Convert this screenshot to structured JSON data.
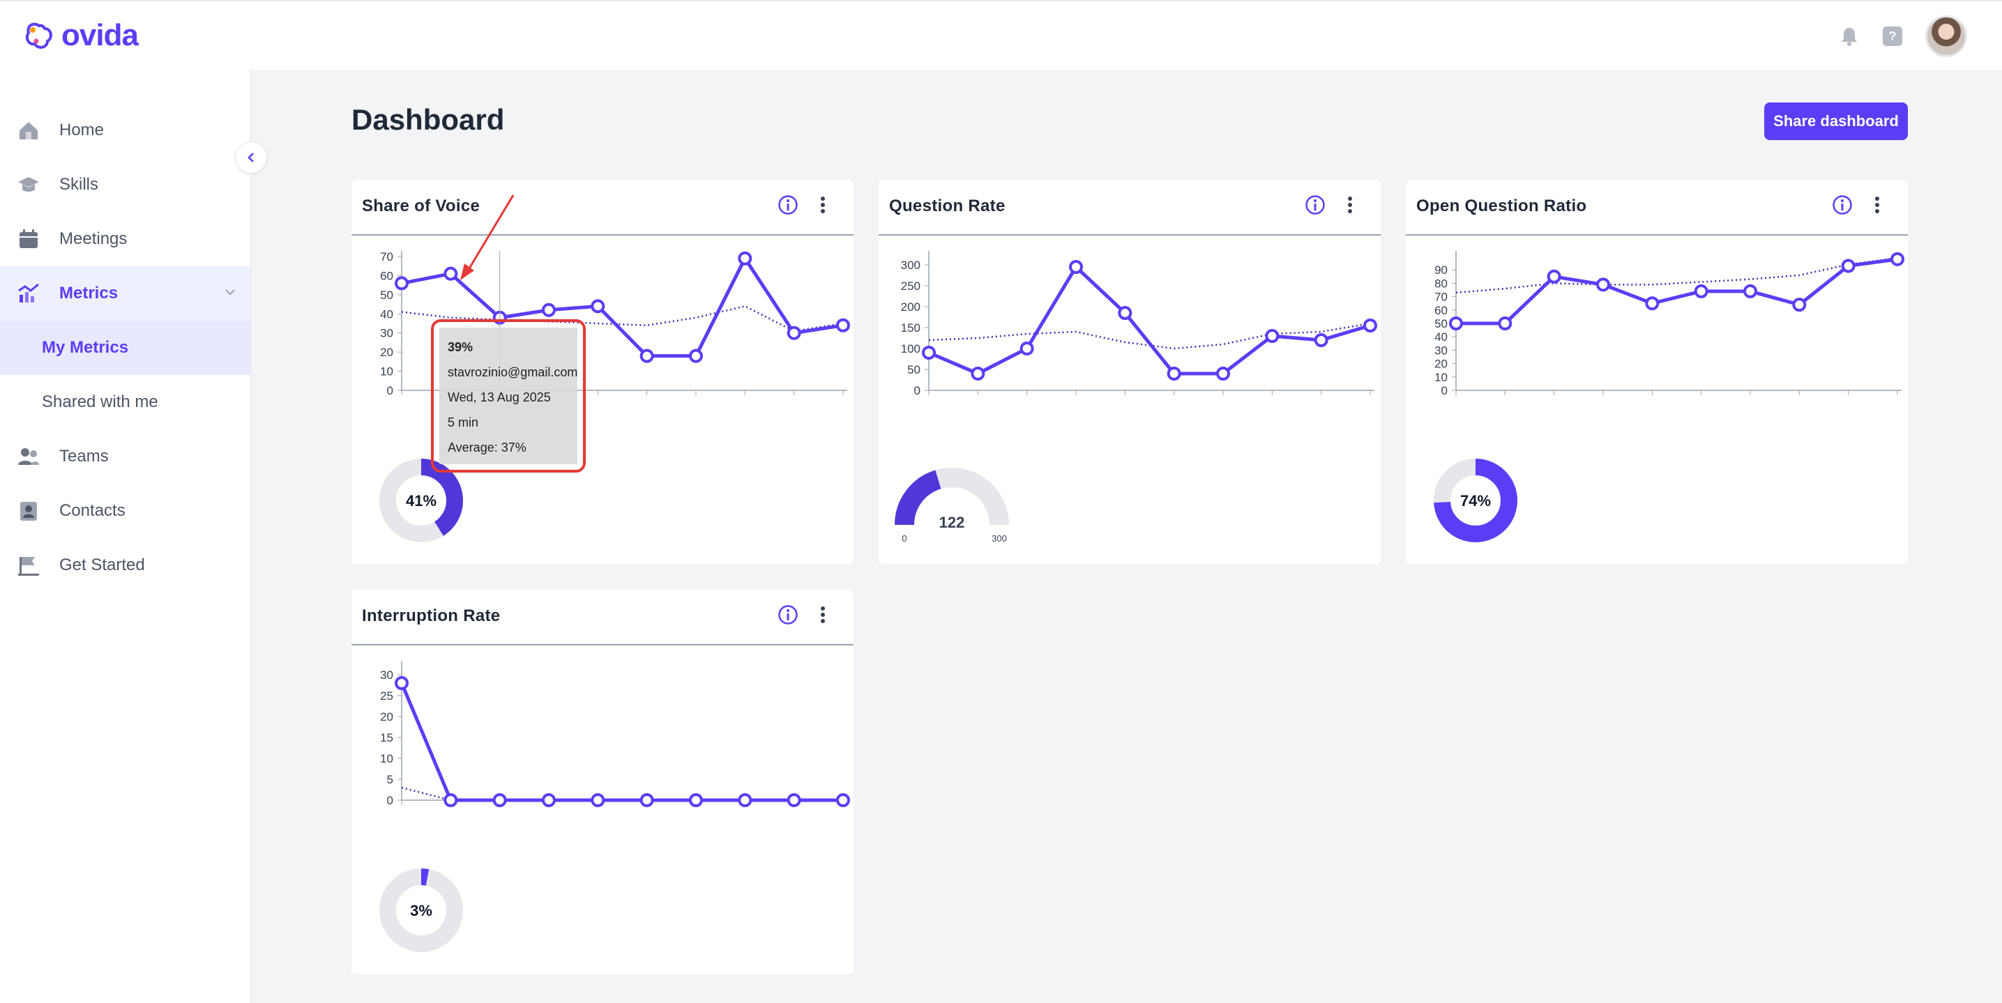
{
  "app": {
    "name": "ovida"
  },
  "header": {
    "help_glyph": "?"
  },
  "sidebar": {
    "items": [
      {
        "label": "Home",
        "icon": "home-icon"
      },
      {
        "label": "Skills",
        "icon": "graduation-cap-icon"
      },
      {
        "label": "Meetings",
        "icon": "calendar-icon"
      },
      {
        "label": "Metrics",
        "icon": "chart-line-icon",
        "active": true
      },
      {
        "label": "Teams",
        "icon": "users-icon"
      },
      {
        "label": "Contacts",
        "icon": "contact-card-icon"
      },
      {
        "label": "Get Started",
        "icon": "flag-icon"
      }
    ],
    "metrics_sub": [
      {
        "label": "My Metrics",
        "selected": true
      },
      {
        "label": "Shared with me"
      }
    ]
  },
  "page": {
    "title": "Dashboard",
    "share_button": "Share dashboard"
  },
  "colors": {
    "accent": "#5b3df5",
    "highlight": "#e53935",
    "gauge_track": "#e5e7eb"
  },
  "cards": [
    {
      "title": "Share of Voice",
      "gauge_label": "41%",
      "chart_data": {
        "type": "line",
        "x": [
          1,
          2,
          3,
          4,
          5,
          6,
          7,
          8,
          9,
          10
        ],
        "yticks": [
          "0",
          "10",
          "20",
          "30",
          "40",
          "50",
          "60",
          "70"
        ],
        "ylim": [
          0,
          70
        ],
        "series": [
          {
            "values": [
              56,
              61,
              38,
              42,
              44,
              18,
              18,
              69,
              30,
              34
            ]
          },
          {
            "values": [
              41,
              38,
              37,
              36,
              35,
              34,
              38,
              44,
              31,
              35
            ],
            "style": "dotted"
          }
        ]
      },
      "gauge": {
        "type": "donut",
        "value": 41,
        "max": 100
      }
    },
    {
      "title": "Question Rate",
      "gauge_label": "122",
      "chart_data": {
        "type": "line",
        "x": [
          1,
          2,
          3,
          4,
          5,
          6,
          7,
          8,
          9,
          10
        ],
        "yticks": [
          "0",
          "50",
          "100",
          "150",
          "200",
          "250",
          "300"
        ],
        "ylim": [
          0,
          320
        ],
        "series": [
          {
            "values": [
              90,
              40,
              100,
              295,
              185,
              40,
              40,
              130,
              120,
              155
            ]
          },
          {
            "values": [
              120,
              125,
              135,
              140,
              115,
              100,
              110,
              135,
              140,
              160
            ],
            "style": "dotted"
          }
        ]
      },
      "gauge": {
        "type": "semi",
        "value": 122,
        "min_label": "0",
        "max_label": "300"
      }
    },
    {
      "title": "Open Question Ratio",
      "gauge_label": "74%",
      "chart_data": {
        "type": "line",
        "x": [
          1,
          2,
          3,
          4,
          5,
          6,
          7,
          8,
          9,
          10
        ],
        "yticks": [
          "0",
          "10",
          "20",
          "30",
          "40",
          "50",
          "60",
          "70",
          "80",
          "90"
        ],
        "ylim": [
          0,
          100
        ],
        "series": [
          {
            "values": [
              50,
              50,
              85,
              79,
              65,
              74,
              74,
              64,
              93,
              98
            ]
          },
          {
            "values": [
              73,
              76,
              80,
              79,
              79,
              81,
              83,
              86,
              94,
              99
            ],
            "style": "dotted"
          }
        ]
      },
      "gauge": {
        "type": "donut",
        "value": 74,
        "max": 100
      }
    },
    {
      "title": "Interruption Rate",
      "gauge_label": "3%",
      "chart_data": {
        "type": "line",
        "x": [
          1,
          2,
          3,
          4,
          5,
          6,
          7,
          8,
          9,
          10
        ],
        "yticks": [
          "0",
          "5",
          "10",
          "15",
          "20",
          "25",
          "30"
        ],
        "ylim": [
          0,
          32
        ],
        "series": [
          {
            "values": [
              28,
              0,
              0,
              0,
              0,
              0,
              0,
              0,
              0,
              0
            ]
          },
          {
            "values": [
              3,
              0,
              0,
              0,
              0,
              0,
              0,
              0,
              0,
              0
            ],
            "style": "dotted"
          }
        ]
      },
      "gauge": {
        "type": "donut",
        "value": 3,
        "max": 100
      }
    }
  ],
  "tooltip": {
    "value": "39%",
    "email": "stavrozinio@gmail.com",
    "date": "Wed, 13 Aug 2025",
    "duration": "5 min",
    "average": "Average: 37%"
  }
}
